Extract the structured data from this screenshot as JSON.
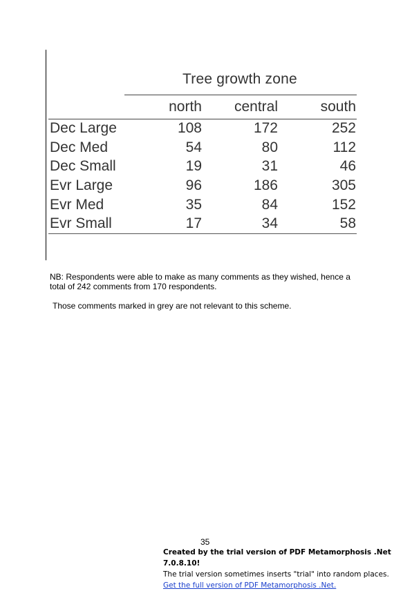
{
  "table": {
    "title": "Tree growth zone",
    "columns": [
      "north",
      "central",
      "south"
    ],
    "rows": [
      {
        "label": "Dec Large",
        "values": [
          "108",
          "172",
          "252"
        ]
      },
      {
        "label": "Dec Med",
        "values": [
          "54",
          "80",
          "112"
        ]
      },
      {
        "label": "Dec Small",
        "values": [
          "19",
          "31",
          "46"
        ]
      },
      {
        "label": "Evr Large",
        "values": [
          "96",
          "186",
          "305"
        ]
      },
      {
        "label": "Evr Med",
        "values": [
          "35",
          "84",
          "152"
        ]
      },
      {
        "label": "Evr Small",
        "values": [
          "17",
          "34",
          "58"
        ]
      }
    ]
  },
  "notes": {
    "respondents_line1": "NB: Respondents were able to make as many comments as they wished, hence a",
    "respondents_line2": "total of 242 comments from 170 respondents.",
    "grey_note": "Those comments marked in grey are not relevant to this scheme."
  },
  "page_number": "35",
  "trial_banner": {
    "line1": "Created by the trial version of PDF Metamorphosis .Net 7.0.8.10!",
    "line2": "The trial version sometimes inserts \"trial\" into random places.",
    "link": "Get the full version of PDF Metamorphosis .Net."
  }
}
